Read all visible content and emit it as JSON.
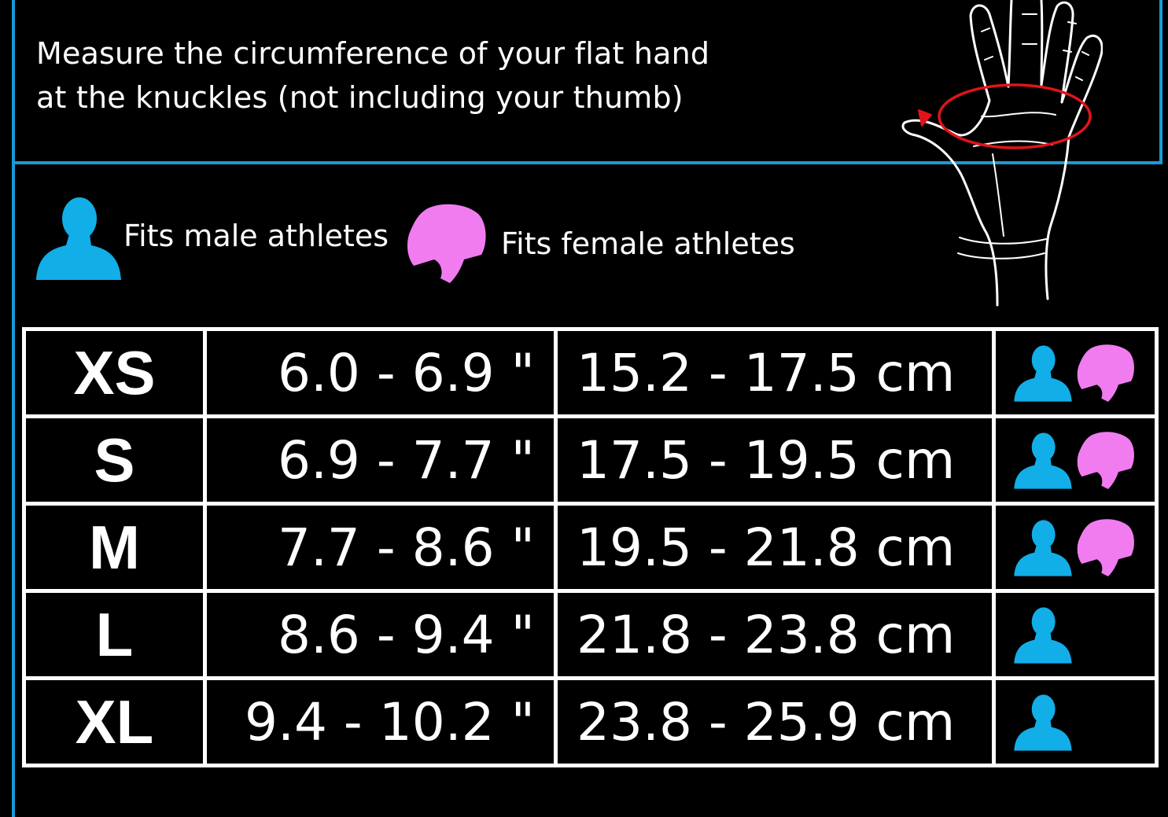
{
  "instructions": {
    "line1": "Measure the circumference of your flat hand",
    "line2": "at the knuckles (not including your thumb)"
  },
  "legend": {
    "male_label": "Fits male athletes",
    "female_label": "Fits female athletes"
  },
  "colors": {
    "frame_blue": "#1a9ad6",
    "male_icon": "#12aee8",
    "female_icon": "#f07cf0",
    "measure_arrow": "#e0141a"
  },
  "icons": {
    "hand": "hand-measurement-icon",
    "male": "male-athlete-icon",
    "female": "female-athlete-icon"
  },
  "table": {
    "rows": [
      {
        "size": "XS",
        "inches": "6.0 - 6.9 \"",
        "cm": "15.2 - 17.5 cm",
        "fits_male": true,
        "fits_female": true
      },
      {
        "size": "S",
        "inches": "6.9 - 7.7 \"",
        "cm": "17.5 - 19.5 cm",
        "fits_male": true,
        "fits_female": true
      },
      {
        "size": "M",
        "inches": "7.7 - 8.6 \"",
        "cm": "19.5 - 21.8 cm",
        "fits_male": true,
        "fits_female": true
      },
      {
        "size": "L",
        "inches": "8.6 - 9.4 \"",
        "cm": "21.8 - 23.8 cm",
        "fits_male": true,
        "fits_female": false
      },
      {
        "size": "XL",
        "inches": "9.4 - 10.2 \"",
        "cm": "23.8 - 25.9 cm",
        "fits_male": true,
        "fits_female": false
      }
    ]
  }
}
